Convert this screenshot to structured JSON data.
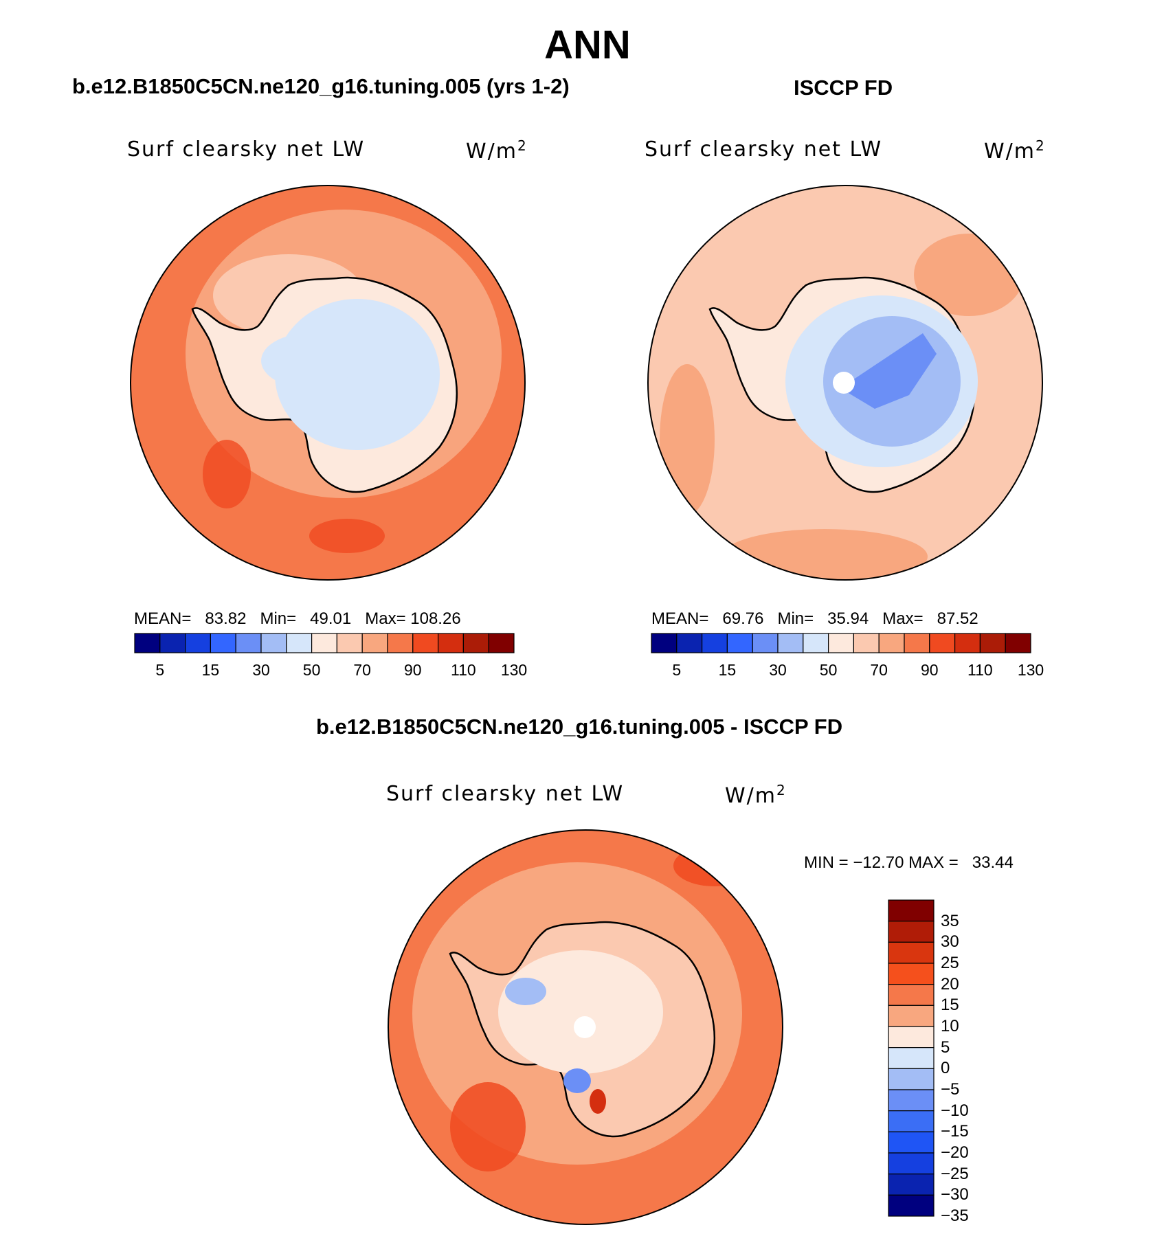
{
  "title": "ANN",
  "panels": [
    {
      "case": "b.e12.B1850C5CN.ne120_g16.tuning.005 (yrs 1-2)",
      "variable": "Surf clearsky net LW",
      "units_base": "W/m",
      "units_sup": "2",
      "stats": {
        "mean_label": "MEAN=",
        "mean": "83.82",
        "min_label": "Min=",
        "min": "49.01",
        "max_label": "Max=",
        "max": "108.26"
      }
    },
    {
      "case": "ISCCP FD",
      "variable": "Surf clearsky net LW",
      "units_base": "W/m",
      "units_sup": "2",
      "stats": {
        "mean_label": "MEAN=",
        "mean": "69.76",
        "min_label": "Min=",
        "min": "35.94",
        "max_label": "Max=",
        "max": "87.52"
      }
    },
    {
      "case": "b.e12.B1850C5CN.ne120_g16.tuning.005 - ISCCP FD",
      "variable": "Surf clearsky net LW",
      "units_base": "W/m",
      "units_sup": "2",
      "stats_line": "MIN = −12.70 MAX =   33.44"
    }
  ],
  "colorbar_abs": {
    "labels": [
      "5",
      "15",
      "30",
      "50",
      "70",
      "90",
      "110",
      "130"
    ],
    "colors": [
      "#00007f",
      "#0a23b0",
      "#1540e0",
      "#3366ff",
      "#6b8ff6",
      "#a3bdf5",
      "#d6e6fa",
      "#fde9dd",
      "#fbc9b0",
      "#f8a77f",
      "#f5784a",
      "#f04a20",
      "#d42e0f",
      "#ab1c07",
      "#800000"
    ]
  },
  "colorbar_diff": {
    "labels": [
      "35",
      "30",
      "25",
      "20",
      "15",
      "10",
      "5",
      "0",
      "−5",
      "−10",
      "−15",
      "−20",
      "−25",
      "−30",
      "−35"
    ],
    "colors": [
      "#800000",
      "#b01c07",
      "#d9360f",
      "#f5501c",
      "#f5784a",
      "#f8a77f",
      "#fde9dd",
      "#d6e6fa",
      "#a3bdf5",
      "#6b8ff6",
      "#3b6ef5",
      "#1f55f5",
      "#1540e0",
      "#0a23b0",
      "#00007f"
    ]
  }
}
